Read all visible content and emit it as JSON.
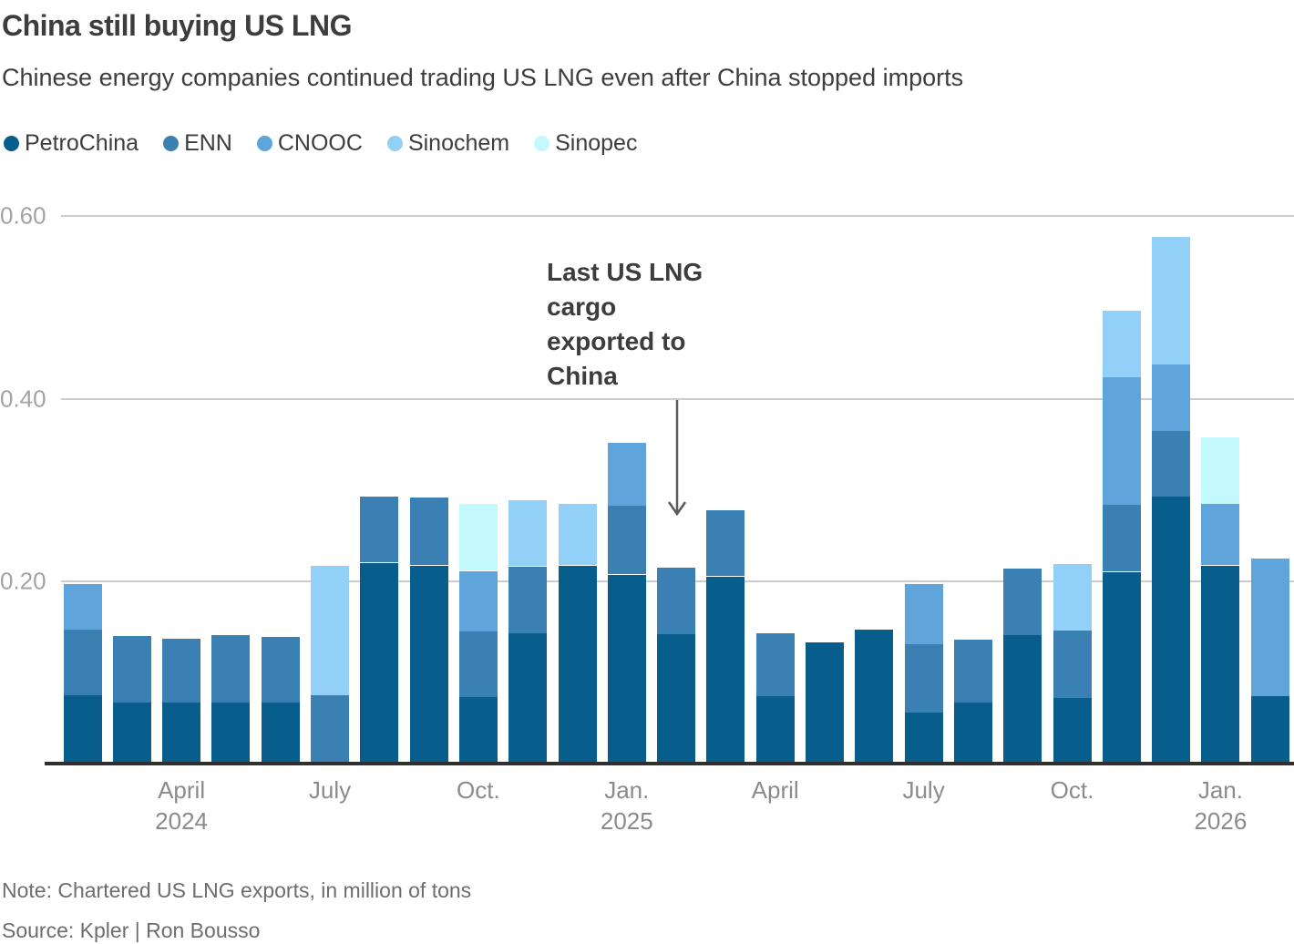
{
  "header": {
    "title": "China still buying US LNG",
    "subtitle": "Chinese energy companies continued trading US LNG even after China stopped imports"
  },
  "legend": {
    "items": [
      {
        "label": "PetroChina",
        "color": "#075e8d"
      },
      {
        "label": "ENN",
        "color": "#3b80b2"
      },
      {
        "label": "CNOOC",
        "color": "#5fa4da"
      },
      {
        "label": "Sinochem",
        "color": "#93d0f7"
      },
      {
        "label": "Sinopec",
        "color": "#c3f9fc"
      }
    ]
  },
  "annotation": {
    "lines": [
      "Last US LNG",
      "cargo",
      "exported to",
      "China"
    ]
  },
  "footer": {
    "note": "Note: Chartered US LNG exports, in million of tons",
    "source": "Source: Kpler | Ron Bousso"
  },
  "chart_data": {
    "type": "bar",
    "stacked": true,
    "title": "China still buying US LNG",
    "unit": "million of tons",
    "ylim": [
      0,
      0.62
    ],
    "grid": true,
    "legend_position": "top",
    "x": [
      "2024-02",
      "2024-03",
      "2024-04",
      "2024-05",
      "2024-06",
      "2024-07",
      "2024-08",
      "2024-09",
      "2024-10",
      "2024-11",
      "2024-12",
      "2025-01",
      "2025-02",
      "2025-03",
      "2025-04",
      "2025-05",
      "2025-06",
      "2025-07",
      "2025-08",
      "2025-09",
      "2025-10",
      "2025-11",
      "2025-12",
      "2026-01",
      "2026-02"
    ],
    "series": [
      {
        "name": "PetroChina",
        "color": "#075e8d",
        "values": [
          0.073,
          0.065,
          0.065,
          0.065,
          0.065,
          0,
          0.218,
          0.215,
          0.071,
          0.141,
          0.215,
          0.205,
          0.14,
          0.203,
          0.072,
          0.131,
          0.145,
          0.054,
          0.065,
          0.139,
          0.07,
          0.208,
          0.29,
          0.215,
          0.072
        ]
      },
      {
        "name": "ENN",
        "color": "#3b80b2",
        "values": [
          0.072,
          0.073,
          0.07,
          0.074,
          0.072,
          0.073,
          0.072,
          0.074,
          0.072,
          0.073,
          0,
          0.075,
          0.073,
          0.072,
          0.069,
          0,
          0,
          0.075,
          0.069,
          0.073,
          0.074,
          0.073,
          0.072,
          0,
          0
        ]
      },
      {
        "name": "CNOOC",
        "color": "#5fa4da",
        "values": [
          0.05,
          0,
          0,
          0,
          0,
          0,
          0,
          0,
          0.066,
          0,
          0,
          0.069,
          0,
          0,
          0,
          0,
          0,
          0.066,
          0,
          0,
          0,
          0.14,
          0.073,
          0.067,
          0.15
        ]
      },
      {
        "name": "Sinochem",
        "color": "#93d0f7",
        "values": [
          0,
          0,
          0,
          0,
          0,
          0.142,
          0,
          0,
          0,
          0.072,
          0.067,
          0,
          0,
          0,
          0,
          0,
          0,
          0,
          0,
          0,
          0.073,
          0.073,
          0.14,
          0,
          0
        ]
      },
      {
        "name": "Sinopec",
        "color": "#c3f9fc",
        "values": [
          0,
          0,
          0,
          0,
          0,
          0,
          0,
          0,
          0.073,
          0,
          0,
          0,
          0,
          0,
          0,
          0,
          0,
          0,
          0,
          0,
          0,
          0,
          0,
          0.073,
          0
        ]
      }
    ],
    "y_ticks": [
      {
        "value": 0.2,
        "label": "0.20"
      },
      {
        "value": 0.4,
        "label": "0.40"
      },
      {
        "value": 0.6,
        "label": "0.60"
      }
    ],
    "x_ticks": [
      {
        "bar": 3,
        "line1": "April",
        "line2": "2024"
      },
      {
        "bar": 6,
        "line1": "July"
      },
      {
        "bar": 9,
        "line1": "Oct."
      },
      {
        "bar": 12,
        "line1": "Jan.",
        "line2": "2025"
      },
      {
        "bar": 15,
        "line1": "April"
      },
      {
        "bar": 18,
        "line1": "July"
      },
      {
        "bar": 21,
        "line1": "Oct."
      },
      {
        "bar": 24,
        "line1": "Jan.",
        "line2": "2026"
      }
    ],
    "annotation": {
      "text": "Last US LNG cargo exported to China",
      "points_to": "2025-02"
    }
  }
}
